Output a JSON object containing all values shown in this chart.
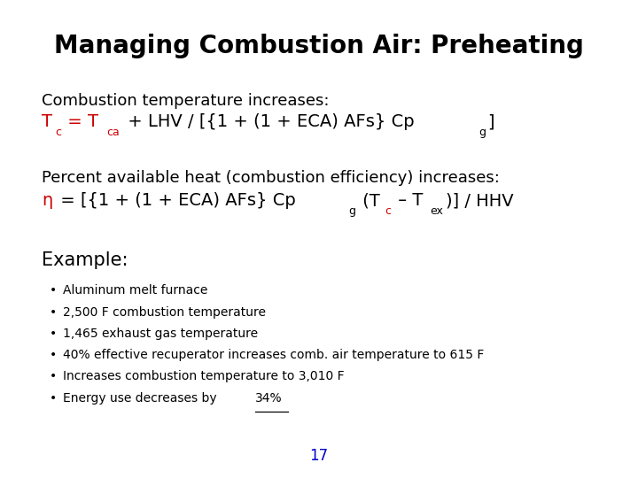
{
  "title": "Managing Combustion Air: Preheating",
  "title_fontsize": 20,
  "background_color": "#ffffff",
  "text_color": "#000000",
  "red_color": "#cc0000",
  "blue_color": "#0000cc",
  "page_number": "17",
  "combustion_label": "Combustion temperature increases:",
  "percent_label": "Percent available heat (combustion efficiency) increases:",
  "example_label": "Example:",
  "bullets": [
    "Aluminum melt furnace",
    "2,500 F combustion temperature",
    "1,465 exhaust gas temperature",
    "40% effective recuperator increases comb. air temperature to 615 F",
    "Increases combustion temperature to 3,010 F",
    "Energy use decreases by 34%"
  ]
}
